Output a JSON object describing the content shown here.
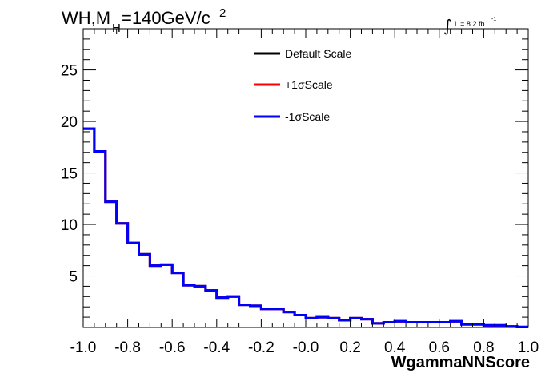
{
  "chart_data": {
    "type": "line",
    "title_main": "WH,M",
    "title_sub": "H",
    "title_rest": "=140GeV/c",
    "title_sup": "2",
    "lumi_label": "L = 8.2 fb",
    "lumi_sup": "-1",
    "xlabel": "WgammaNNScore",
    "xlim": [
      -1.0,
      1.0
    ],
    "ylim": [
      0,
      29
    ],
    "x_ticks": [
      "-1.0",
      "-0.8",
      "-0.6",
      "-0.4",
      "-0.2",
      "-0.0",
      "0.2",
      "0.4",
      "0.6",
      "0.8",
      "1.0"
    ],
    "y_ticks": [
      "5",
      "10",
      "15",
      "20",
      "25"
    ],
    "bin_edges": [
      -1.0,
      -0.95,
      -0.9,
      -0.85,
      -0.8,
      -0.75,
      -0.7,
      -0.65,
      -0.6,
      -0.55,
      -0.5,
      -0.45,
      -0.4,
      -0.35,
      -0.3,
      -0.25,
      -0.2,
      -0.15,
      -0.1,
      -0.05,
      0.0,
      0.05,
      0.1,
      0.15,
      0.2,
      0.25,
      0.3,
      0.35,
      0.4,
      0.45,
      0.5,
      0.55,
      0.6,
      0.65,
      0.7,
      0.75,
      0.8,
      0.85,
      0.9,
      0.95,
      1.0
    ],
    "legend_position": "top-center",
    "series": [
      {
        "name": "Default Scale",
        "color": "#000000",
        "values": [
          19.3,
          17.1,
          12.2,
          10.1,
          8.2,
          7.1,
          6.0,
          6.1,
          5.3,
          4.1,
          4.0,
          3.6,
          2.9,
          3.0,
          2.2,
          2.1,
          1.8,
          1.8,
          1.5,
          1.2,
          0.9,
          1.0,
          0.9,
          0.7,
          0.9,
          0.8,
          0.4,
          0.5,
          0.6,
          0.5,
          0.5,
          0.5,
          0.5,
          0.6,
          0.3,
          0.3,
          0.2,
          0.2,
          0.1,
          0.05
        ]
      },
      {
        "name": "+1σScale",
        "color": "#ff0000",
        "values": [
          19.3,
          17.1,
          12.2,
          10.1,
          8.2,
          7.1,
          6.0,
          6.1,
          5.3,
          4.1,
          4.0,
          3.6,
          2.9,
          3.0,
          2.2,
          2.1,
          1.8,
          1.8,
          1.5,
          1.2,
          0.9,
          1.0,
          0.9,
          0.7,
          0.9,
          0.8,
          0.4,
          0.5,
          0.6,
          0.5,
          0.5,
          0.5,
          0.5,
          0.6,
          0.3,
          0.3,
          0.2,
          0.2,
          0.1,
          0.05
        ]
      },
      {
        "name": "-1σScale",
        "color": "#0000ff",
        "values": [
          19.3,
          17.1,
          12.2,
          10.1,
          8.2,
          7.1,
          6.0,
          6.1,
          5.3,
          4.1,
          4.0,
          3.6,
          2.9,
          3.0,
          2.2,
          2.1,
          1.8,
          1.8,
          1.5,
          1.2,
          0.9,
          1.0,
          0.9,
          0.7,
          0.9,
          0.8,
          0.4,
          0.5,
          0.6,
          0.5,
          0.5,
          0.5,
          0.5,
          0.6,
          0.3,
          0.3,
          0.2,
          0.2,
          0.1,
          0.05
        ]
      }
    ]
  }
}
